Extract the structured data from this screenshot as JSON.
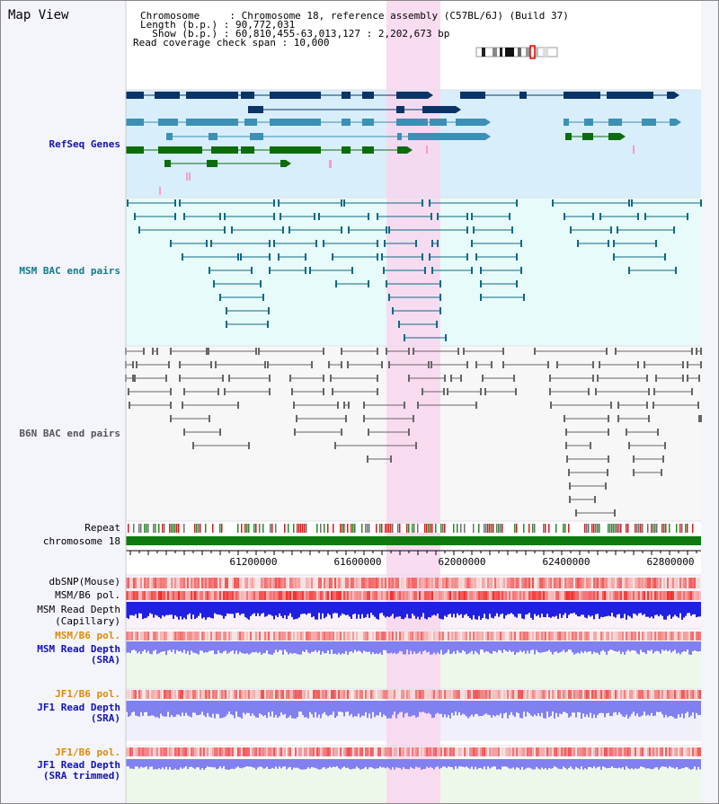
{
  "title": "Map View",
  "header": {
    "chromosome_line": "Chromosome     : Chromosome 18, reference assembly (C57BL/6J) (Build 37)",
    "length_line": "Length (b.p.) : 90,772,031",
    "show_line": "  Show (b.p.) : 60,810,455-63,013,127 : 2,202,673 bp",
    "span_line": "Read coverage check span : 10,000"
  },
  "tracks": {
    "refseq_label": "RefSeq Genes",
    "msm_bac_label": "MSM BAC end pairs",
    "b6n_bac_label": "B6N BAC end pairs",
    "repeat_label": "Repeat",
    "chrom_label": "chromosome 18",
    "dbsnp_label": "dbSNP(Mouse)",
    "msm_pol_label": "MSM/B6 pol.",
    "msm_cap_label_1": "MSM Read Depth",
    "msm_cap_label_2": "(Capillary)",
    "msm_pol2_label": "MSM/B6 pol.",
    "msm_sra_label_1": "MSM Read Depth",
    "msm_sra_label_2": "(SRA)",
    "jf1_pol_label": "JF1/B6 pol.",
    "jf1_sra_label_1": "JF1 Read Depth",
    "jf1_sra_label_2": "(SRA)",
    "jf1_pol2_label": "JF1/B6 pol.",
    "jf1_trim_label_1": "JF1 Read Depth",
    "jf1_trim_label_2": "(SRA trimmed)"
  },
  "axis": {
    "ticks": [
      "61200000",
      "61600000",
      "62000000",
      "62400000",
      "62800000"
    ]
  },
  "colors": {
    "refseq_bg": "#d8eefa",
    "bac_bg": "#e8fbfb",
    "highlight": "#f9d6ee",
    "gene_dark": "#0a3466",
    "gene_mid": "#3c8fb5",
    "gene_green": "#0d6d0d",
    "msm_line": "#0b6a86",
    "b6n_line": "#666666",
    "chrom_green": "#0f7a0f",
    "depth_blue": "#2020e0",
    "depth_lav": "#8080f0",
    "pol_red": "#ee3333",
    "label_blue": "#1212b8",
    "label_teal": "#137a8a",
    "label_orange": "#e08a00",
    "label_gray": "#555555"
  }
}
